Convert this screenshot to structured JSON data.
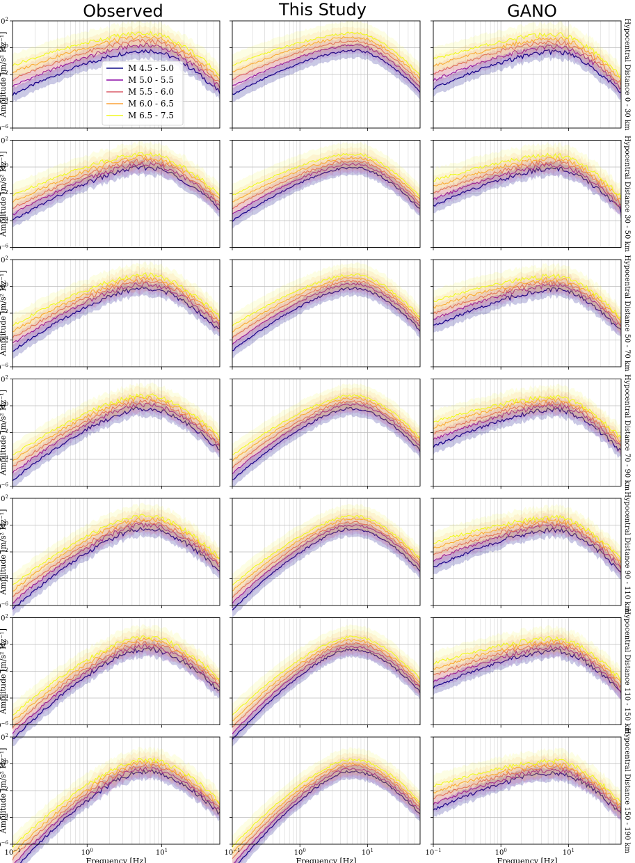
{
  "chart_data": {
    "type": "line",
    "columns": [
      {
        "title": "Observed"
      },
      {
        "title": "This Study"
      },
      {
        "title": "GANO"
      }
    ],
    "rows": [
      {
        "label": "Hypocentral Distance 0 - 30 km"
      },
      {
        "label": "Hypocentral Distance 30 - 50 km"
      },
      {
        "label": "Hypocentral Distance 50 - 70 km"
      },
      {
        "label": "Hypocentral Distance 70 - 90 km"
      },
      {
        "label": "Hypocentral Distance 90 - 110 km"
      },
      {
        "label": "Hypocentral Distance 110 - 150 km"
      },
      {
        "label": "Hypocentral Distance 150 - 190 km"
      }
    ],
    "xlabel": "Frequency [Hz]",
    "ylabel": "Amplitude [m/s² Hz⁻¹]",
    "xscale": "log",
    "yscale": "log",
    "xlim": [
      0.1,
      60
    ],
    "ylim": [
      1e-06,
      100
    ],
    "xticks": [
      {
        "value": 0.1,
        "label": "10",
        "exp": "−1"
      },
      {
        "value": 1,
        "label": "10",
        "exp": "0"
      },
      {
        "value": 10,
        "label": "10",
        "exp": "1"
      }
    ],
    "yticks": [
      {
        "value": 100,
        "label": "10",
        "exp": "2"
      },
      {
        "value": 1,
        "label": "10",
        "exp": "0"
      },
      {
        "value": 0.01,
        "label": "10",
        "exp": "−2"
      },
      {
        "value": 0.0001,
        "label": "10",
        "exp": "−4"
      },
      {
        "value": 1e-06,
        "label": "10",
        "exp": "−6"
      }
    ],
    "grid": true,
    "legend_position": "inside upper-left of first panel",
    "series": [
      {
        "name": "M 4.5 - 5.0",
        "color": "#0d0887",
        "peak": [
          0.6,
          0.9,
          0.7,
          0.6,
          0.5,
          0.4,
          0.25
        ]
      },
      {
        "name": "M 5.0 - 5.5",
        "color": "#8b0aa5",
        "peak": [
          1.5,
          1.6,
          1.4,
          1.2,
          1.0,
          0.7,
          0.4
        ]
      },
      {
        "name": "M 5.5 - 6.0",
        "color": "#db5c68",
        "peak": [
          3.0,
          2.8,
          2.4,
          2.0,
          1.6,
          1.2,
          0.7
        ]
      },
      {
        "name": "M 6.0 - 6.5",
        "color": "#fba238",
        "peak": [
          6.0,
          5.0,
          4.0,
          3.5,
          2.8,
          2.0,
          1.1
        ]
      },
      {
        "name": "M 6.5 - 7.5",
        "color": "#f0f921",
        "peak": [
          12.0,
          9.0,
          7.0,
          5.5,
          4.5,
          3.5,
          2.0
        ]
      }
    ]
  }
}
